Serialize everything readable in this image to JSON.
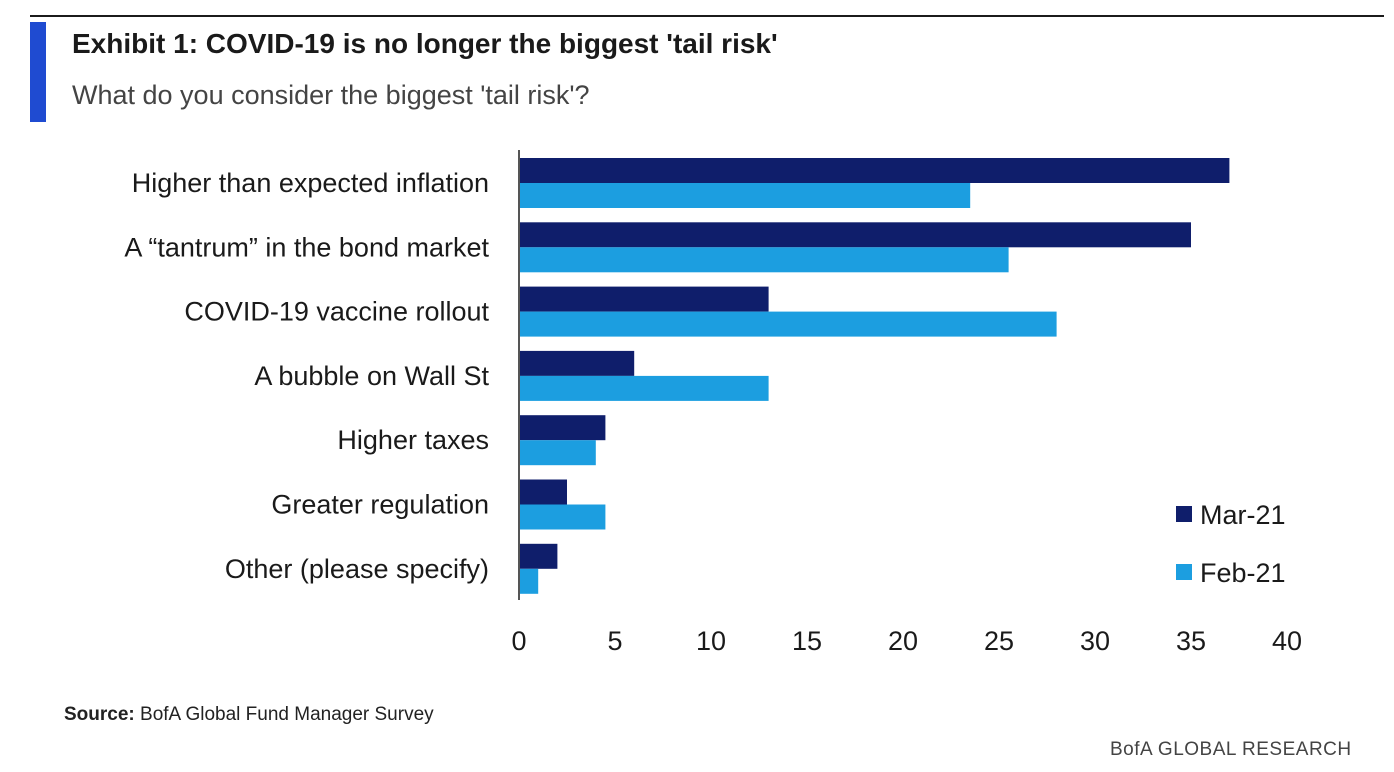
{
  "header": {
    "title": "Exhibit 1: COVID-19 is no longer the biggest 'tail risk'",
    "subtitle": "What do you consider the biggest 'tail risk'?"
  },
  "footer": {
    "source_label": "Source:",
    "source_text": " BofA Global Fund Manager Survey",
    "brand": "BofA GLOBAL RESEARCH"
  },
  "colors": {
    "accent": "#1f4bd1",
    "mar21": "#0f1e6b",
    "feb21": "#1c9ee0"
  },
  "chart_data": {
    "type": "bar",
    "orientation": "horizontal",
    "title": "Exhibit 1: COVID-19 is no longer the biggest 'tail risk'",
    "subtitle": "What do you consider the biggest 'tail risk'?",
    "xlabel": "",
    "ylabel": "",
    "categories": [
      "Higher than expected inflation",
      "A “tantrum” in the bond market",
      "COVID-19 vaccine rollout",
      "A bubble on Wall St",
      "Higher taxes",
      "Greater regulation",
      "Other (please specify)"
    ],
    "series": [
      {
        "name": "Mar-21",
        "color": "#0f1e6b",
        "values": [
          37,
          35,
          13,
          6,
          4.5,
          2.5,
          2
        ]
      },
      {
        "name": "Feb-21",
        "color": "#1c9ee0",
        "values": [
          23.5,
          25.5,
          28,
          13,
          4,
          4.5,
          1
        ]
      }
    ],
    "xlim": [
      0,
      40
    ],
    "xticks": [
      0,
      5,
      10,
      15,
      20,
      25,
      30,
      35,
      40
    ],
    "grid": false,
    "legend_position": "bottom-right"
  }
}
